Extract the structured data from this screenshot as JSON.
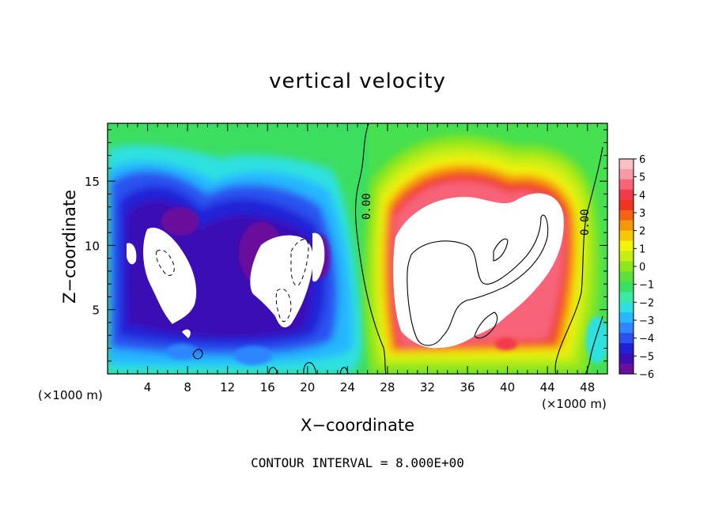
{
  "chart_data": {
    "type": "heatmap",
    "title": "vertical velocity",
    "xlabel": "X−coordinate",
    "ylabel": "Z−coordinate",
    "x_unit_left": "(×1000 m)",
    "x_unit_right": "(×1000 m)",
    "xlim": [
      0,
      50
    ],
    "ylim": [
      0,
      19.5
    ],
    "x_ticks": [
      4,
      8,
      12,
      16,
      20,
      24,
      28,
      32,
      36,
      40,
      44,
      48
    ],
    "y_ticks": [
      5,
      10,
      15
    ],
    "contour_interval_text": "CONTOUR INTERVAL = 8.000E+00",
    "contour_labels": [
      "0.00",
      "0.00"
    ],
    "colorbar": {
      "ticks": [
        "6",
        "5",
        "4",
        "3",
        "2",
        "1",
        "0",
        "−1",
        "−2",
        "−3",
        "−4",
        "−5",
        "−6"
      ],
      "min": -6,
      "max": 6,
      "colors": [
        "#6a0f9c",
        "#3b0fb4",
        "#2020d8",
        "#2a52f0",
        "#2f86ff",
        "#27b6ff",
        "#2ee0e0",
        "#3ae8a8",
        "#36e060",
        "#5fe03a",
        "#8ee61c",
        "#c6ee12",
        "#f2f20a",
        "#f7c808",
        "#f6960a",
        "#f56214",
        "#f0321f",
        "#f23a4a",
        "#f76478",
        "#f79aa2",
        "#f8c0c4"
      ]
    },
    "features": [
      {
        "name": "upward core",
        "x_center": 37,
        "z_center": 9,
        "value": ">6"
      },
      {
        "name": "downward core left",
        "x_center": 7,
        "z_center": 8,
        "value": "<-6"
      },
      {
        "name": "downward core middle",
        "x_center": 18,
        "z_center": 8,
        "value": "<-6"
      }
    ]
  }
}
